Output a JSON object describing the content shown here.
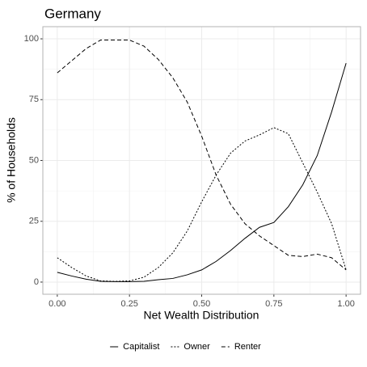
{
  "chart_data": {
    "type": "line",
    "title": "Germany",
    "x_label": "Net Wealth Distribution",
    "y_label": "% of Households",
    "x": [
      0,
      0.05,
      0.1,
      0.15,
      0.2,
      0.25,
      0.3,
      0.35,
      0.4,
      0.45,
      0.5,
      0.55,
      0.6,
      0.65,
      0.7,
      0.75,
      0.8,
      0.85,
      0.9,
      0.95,
      1.0
    ],
    "series": [
      {
        "name": "Capitalist",
        "color": "#000000",
        "dash": "solid",
        "values": [
          4,
          2.5,
          1.2,
          0.3,
          0.2,
          0.2,
          0.3,
          1,
          1.5,
          3,
          5,
          8.5,
          13,
          18,
          22.5,
          24.5,
          31,
          40,
          52,
          70,
          90
        ]
      },
      {
        "name": "Owner",
        "color": "#000000",
        "dash": "dotted",
        "values": [
          10,
          6,
          2.5,
          0.5,
          0.3,
          0.5,
          2,
          6,
          12,
          21,
          33,
          44,
          53,
          58,
          60.5,
          63.5,
          61,
          49,
          37,
          24,
          5
        ]
      },
      {
        "name": "Renter",
        "color": "#000000",
        "dash": "dashed",
        "values": [
          86,
          91,
          96,
          99.5,
          99.5,
          99.5,
          97,
          91.5,
          84,
          74,
          60,
          44,
          32,
          24,
          19,
          15,
          11,
          10.5,
          11.5,
          10,
          5
        ]
      }
    ],
    "xlim": [
      -0.05,
      1.05
    ],
    "xticks": [
      {
        "value": 0,
        "label": "0.00"
      },
      0.25,
      {
        "value": 0.5,
        "label": "0.50"
      },
      0.75,
      {
        "value": 1,
        "label": "1.00"
      }
    ],
    "ylim": [
      -5,
      105
    ],
    "yticks": [
      0,
      25,
      50,
      75,
      100
    ],
    "grid": true,
    "legend_position": "bottom"
  }
}
